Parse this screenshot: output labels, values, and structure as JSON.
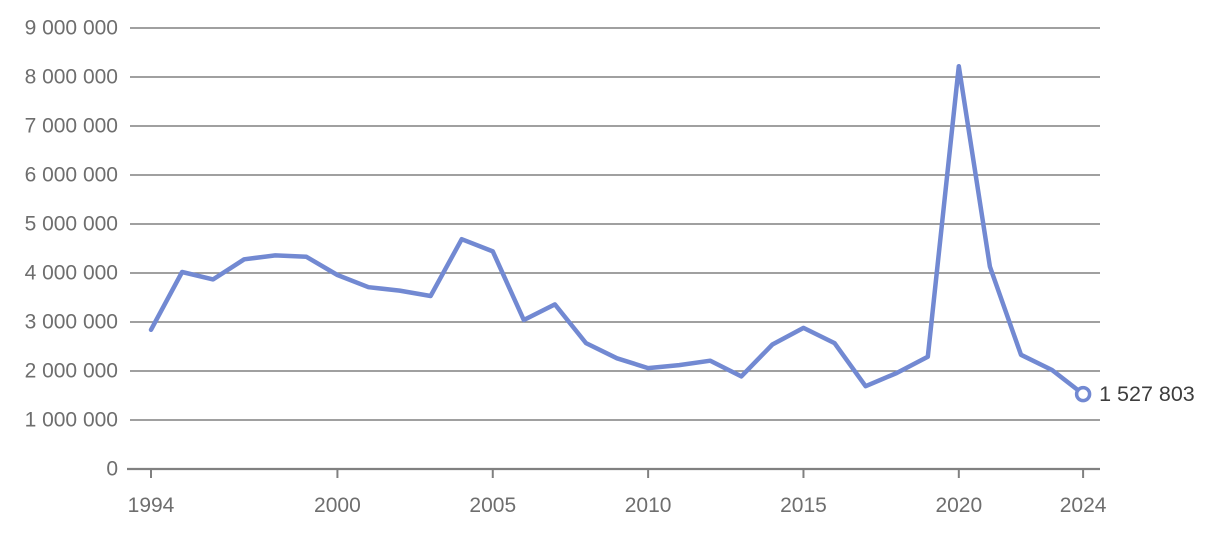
{
  "chart_data": {
    "type": "line",
    "title": "",
    "xlabel": "",
    "ylabel": "",
    "x": [
      1994,
      1995,
      1996,
      1997,
      1998,
      1999,
      2000,
      2001,
      2002,
      2003,
      2004,
      2005,
      2006,
      2007,
      2008,
      2009,
      2010,
      2011,
      2012,
      2013,
      2014,
      2015,
      2016,
      2017,
      2018,
      2019,
      2020,
      2021,
      2022,
      2023,
      2024
    ],
    "values": [
      2840000,
      4020000,
      3870000,
      4280000,
      4360000,
      4330000,
      3960000,
      3710000,
      3640000,
      3530000,
      4690000,
      4440000,
      3040000,
      3360000,
      2570000,
      2260000,
      2060000,
      2120000,
      2210000,
      1890000,
      2540000,
      2880000,
      2570000,
      1690000,
      1960000,
      2290000,
      8220000,
      4130000,
      2330000,
      2020000,
      1527803
    ],
    "xlim": [
      1994,
      2024
    ],
    "ylim": [
      0,
      9000000
    ],
    "grid": "horizontal",
    "legend": "none",
    "x_tick_labels": [
      "1994",
      "2000",
      "2005",
      "2010",
      "2015",
      "2020",
      "2024"
    ],
    "y_tick_labels": [
      "0",
      "1 000 000",
      "2 000 000",
      "3 000 000",
      "4 000 000",
      "5 000 000",
      "6 000 000",
      "7 000 000",
      "8 000 000",
      "9 000 000"
    ],
    "y_tick_values": [
      0,
      1000000,
      2000000,
      3000000,
      4000000,
      5000000,
      6000000,
      7000000,
      8000000,
      9000000
    ],
    "end_point": {
      "x": 2024,
      "value": 1527803,
      "label": "1 527 803",
      "marker": "open-circle"
    },
    "colors": {
      "line": "#7289d2",
      "marker_fill": "#ffffff",
      "gridline": "#808080",
      "axis_line": "#808080",
      "tick_text": "#6e6e6e",
      "end_label_text": "#3d3d3d"
    }
  }
}
